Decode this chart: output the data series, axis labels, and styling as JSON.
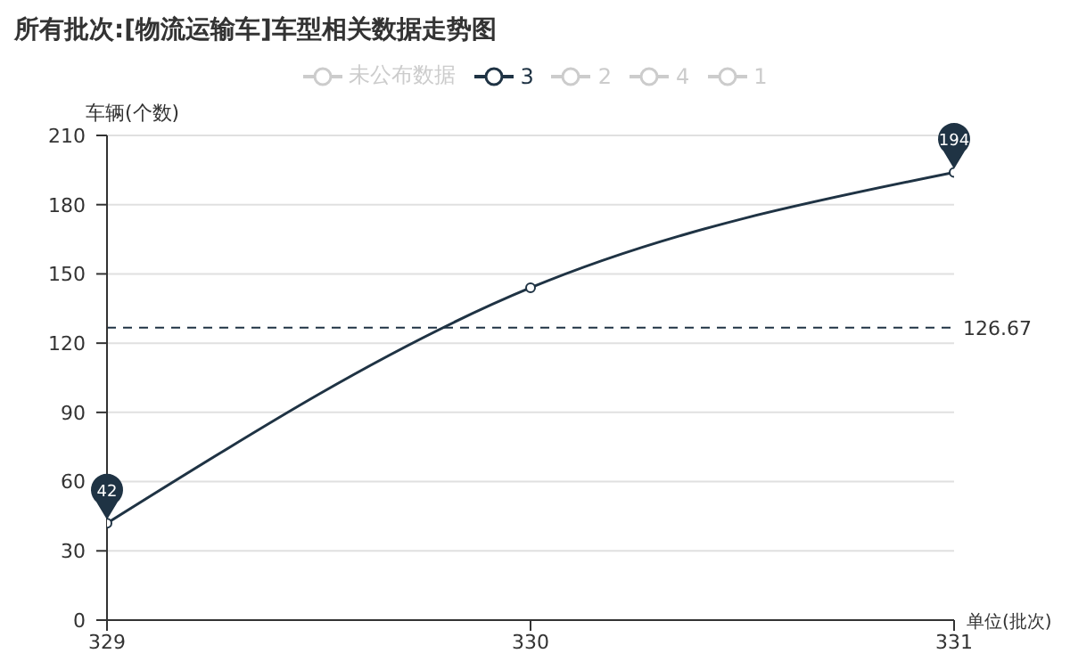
{
  "chart_data": {
    "type": "line",
    "title": "所有批次:[物流运输车]车型相关数据走势图",
    "xlabel": "单位(批次)",
    "ylabel": "车辆(个数)",
    "x": [
      329,
      330,
      331
    ],
    "series": [
      {
        "name": "未公布数据",
        "color": "#cccccc",
        "values": [
          null,
          null,
          null
        ]
      },
      {
        "name": "3",
        "color": "#1f3344",
        "values": [
          42,
          144,
          194
        ],
        "value_labels": [
          "42",
          null,
          "194"
        ]
      },
      {
        "name": "2",
        "color": "#cccccc",
        "values": [
          null,
          null,
          null
        ]
      },
      {
        "name": "4",
        "color": "#cccccc",
        "values": [
          null,
          null,
          null
        ]
      },
      {
        "name": "1",
        "color": "#cccccc",
        "values": [
          null,
          null,
          null
        ]
      }
    ],
    "xlim": [
      329,
      331
    ],
    "xticks": [
      329,
      330,
      331
    ],
    "ylim": [
      0,
      210
    ],
    "yticks": [
      0,
      30,
      60,
      90,
      120,
      150,
      180,
      210
    ],
    "ref_lines": [
      {
        "axis": "y",
        "value": 126.67,
        "label": "126.67",
        "color": "#1f3344",
        "line_style": "dashed"
      }
    ],
    "grid": "y",
    "legend": "top",
    "marker": "circle",
    "line_style": "solid"
  }
}
